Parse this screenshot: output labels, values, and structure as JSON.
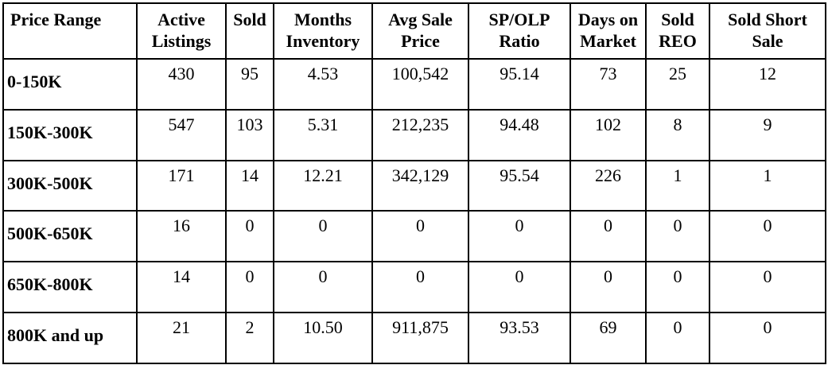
{
  "table": {
    "headers": [
      "Price Range",
      "Active Listings",
      "Sold",
      "Months Inventory",
      "Avg Sale Price",
      "SP/OLP Ratio",
      "Days on Market",
      "Sold REO",
      "Sold Short Sale"
    ],
    "rows": [
      [
        "0-150K",
        "430",
        "95",
        "4.53",
        "100,542",
        "95.14",
        "73",
        "25",
        "12"
      ],
      [
        "150K-300K",
        "547",
        "103",
        "5.31",
        "212,235",
        "94.48",
        "102",
        "8",
        "9"
      ],
      [
        "300K-500K",
        "171",
        "14",
        "12.21",
        "342,129",
        "95.54",
        "226",
        "1",
        "1"
      ],
      [
        "500K-650K",
        "16",
        "0",
        "0",
        "0",
        "0",
        "0",
        "0",
        "0"
      ],
      [
        "650K-800K",
        "14",
        "0",
        "0",
        "0",
        "0",
        "0",
        "0",
        "0"
      ],
      [
        "800K and up",
        "21",
        "2",
        "10.50",
        "911,875",
        "93.53",
        "69",
        "0",
        "0"
      ]
    ]
  }
}
